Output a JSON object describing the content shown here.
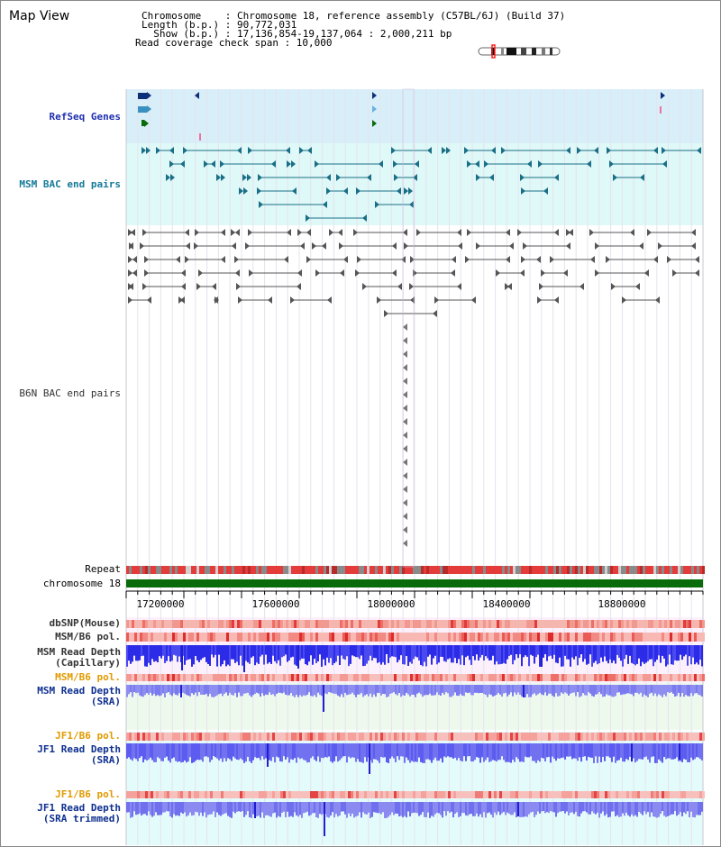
{
  "title": "Map View",
  "info": {
    "chromosome": "Chromosome    : Chromosome 18, reference assembly (C57BL/6J) (Build 37)",
    "length": "Length (b.p.) : 90,772,031",
    "show": "  Show (b.p.) : 17,136,854-19,137,064 : 2,000,211 bp",
    "coverage": "Read coverage check span : 10,000"
  },
  "tracks": {
    "refseq": "RefSeq Genes",
    "msm_bac": "MSM BAC end pairs",
    "b6n_bac": "B6N BAC end pairs",
    "repeat": "Repeat",
    "chromosome": "chromosome 18",
    "dbsnp": "dbSNP(Mouse)",
    "msm_b6_pol_1": "MSM/B6 pol.",
    "msm_depth_cap_1": "MSM Read Depth",
    "msm_depth_cap_2": "(Capillary)",
    "msm_b6_pol_2": "MSM/B6 pol.",
    "msm_depth_sra_1": "MSM Read Depth",
    "msm_depth_sra_2": "(SRA)",
    "jf1_b6_pol_1": "JF1/B6 pol.",
    "jf1_depth_1": "JF1 Read Depth",
    "jf1_depth_2": "(SRA)",
    "jf1_b6_pol_2": "JF1/B6 pol.",
    "jf1_trim_1": "JF1 Read Depth",
    "jf1_trim_2": "(SRA trimmed)"
  },
  "axis": {
    "ticks": [
      "17200000",
      "17600000",
      "18000000",
      "18400000",
      "18800000"
    ]
  },
  "colors": {
    "refseq_bg": "#d8eef9",
    "msm_bac_bg": "#dff8f8",
    "teal": "#1a6f86",
    "grey": "#555555",
    "chromosome": "#0a6b0a",
    "depth_blue": "#3a3ae8",
    "depth_light": "#8a8af0"
  }
}
